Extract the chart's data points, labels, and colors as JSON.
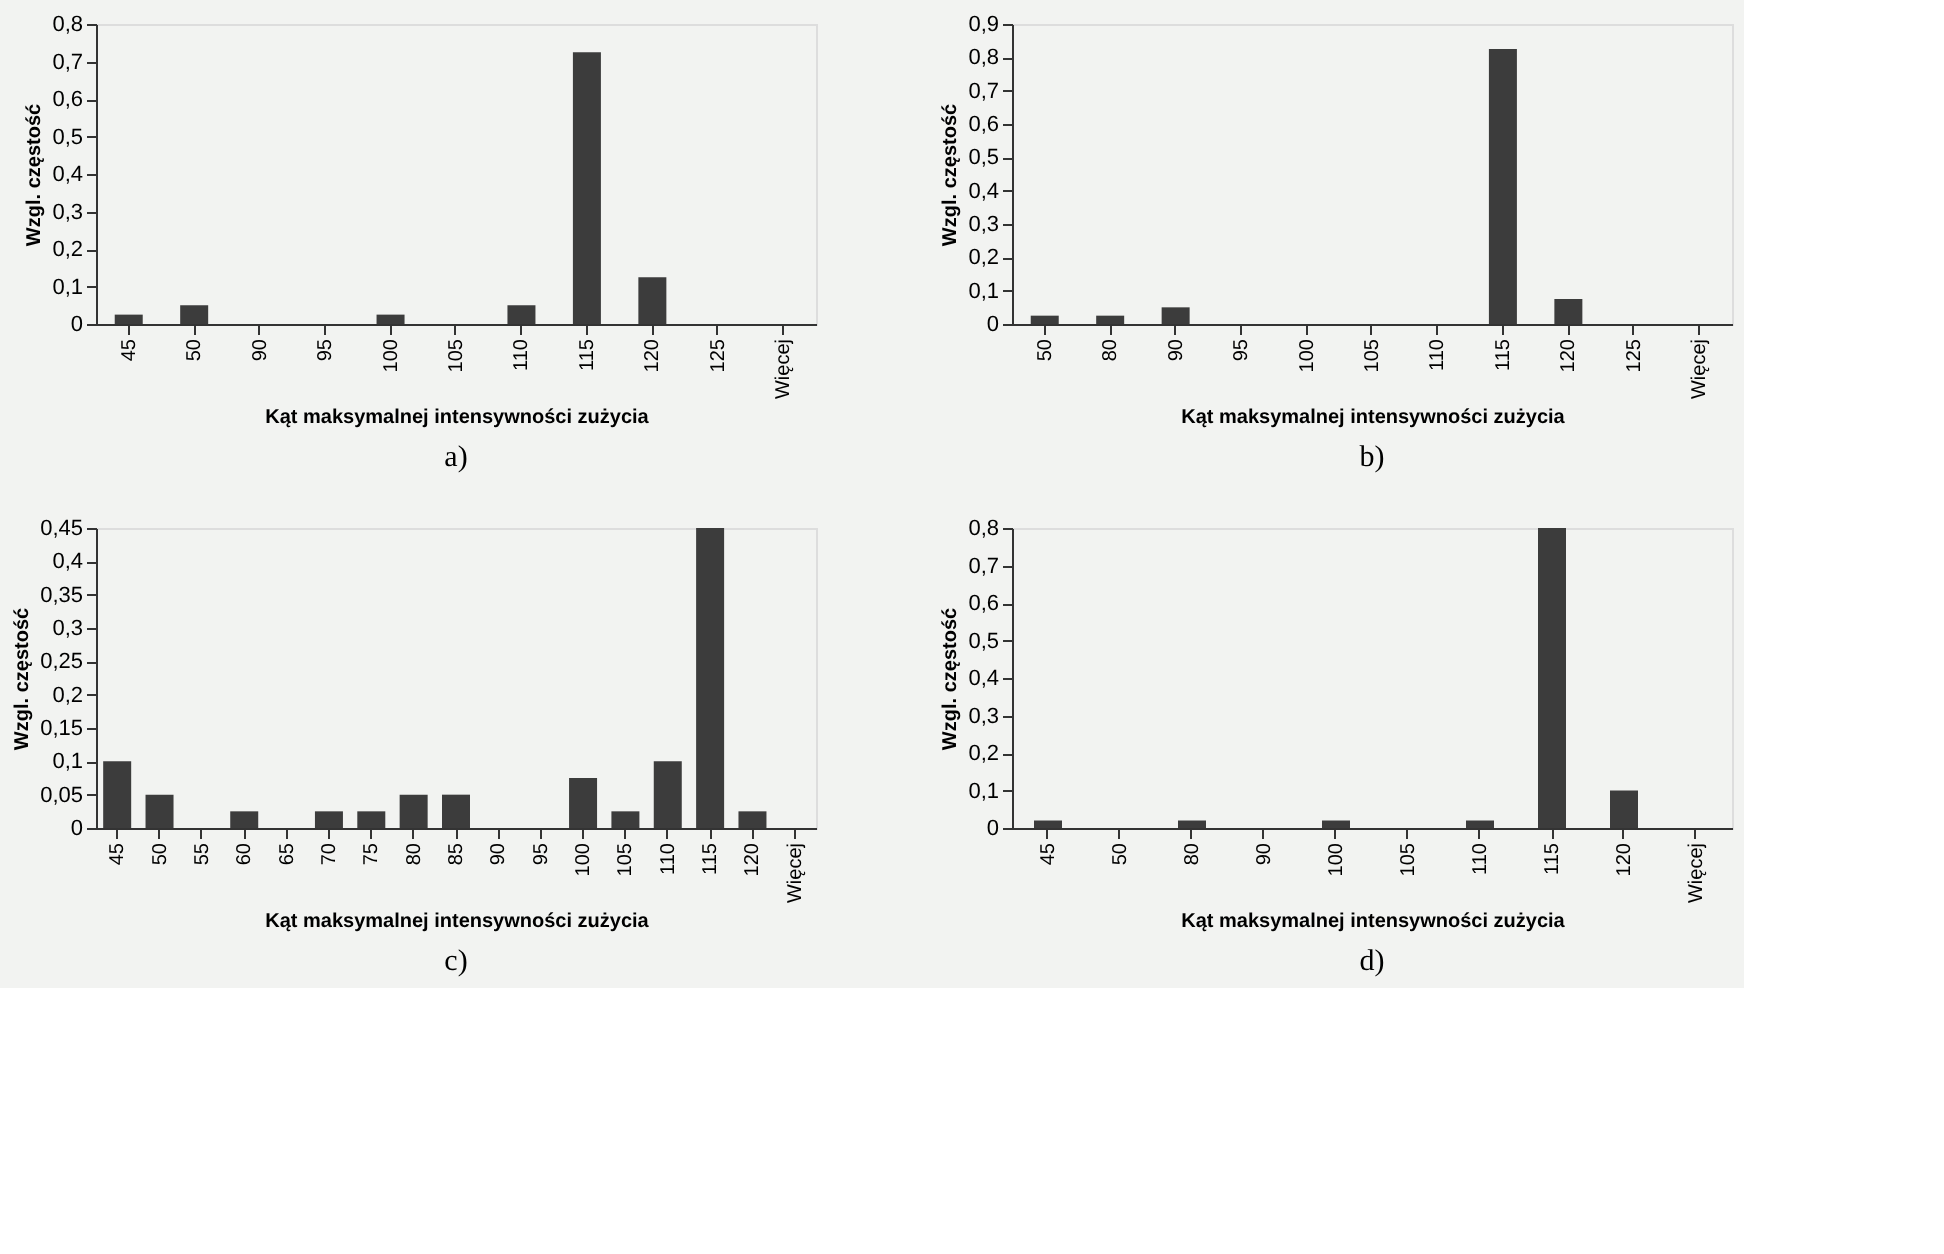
{
  "chart_data": [
    {
      "type": "bar",
      "xlabel": "Kąt maksymalnej intensywności zużycia",
      "ylabel": "Wzgl. częstość",
      "annotations": [
        "a)"
      ],
      "color": "#3c3c3c",
      "categories": [
        "45",
        "50",
        "90",
        "95",
        "100",
        "105",
        "110",
        "115",
        "120",
        "125",
        "Więcej"
      ],
      "values": [
        0.025,
        0.05,
        0,
        0,
        0.025,
        0,
        0.05,
        0.725,
        0.125,
        0,
        0
      ],
      "ylim": [
        0,
        0.8
      ],
      "yticks": [
        0,
        {
          "value": 0.1,
          "label": "0,1"
        },
        {
          "value": 0.2,
          "label": "0,2"
        },
        {
          "value": 0.3,
          "label": "0,3"
        },
        {
          "value": 0.4,
          "label": "0,4"
        },
        {
          "value": 0.5,
          "label": "0,5"
        },
        {
          "value": 0.6,
          "label": "0,6"
        },
        {
          "value": 0.7,
          "label": "0,7"
        },
        {
          "value": 0.8,
          "label": "0,8"
        }
      ]
    },
    {
      "type": "bar",
      "xlabel": "Kąt maksymalnej intensywności zużycia",
      "ylabel": "Wzgl. częstość",
      "annotations": [
        "b)"
      ],
      "color": "#3c3c3c",
      "categories": [
        "50",
        "80",
        "90",
        "95",
        "100",
        "105",
        "110",
        "115",
        "120",
        "125",
        "Więcej"
      ],
      "values": [
        0.025,
        0.025,
        0.05,
        0,
        0,
        0,
        0,
        0.825,
        0.075,
        0,
        0
      ],
      "ylim": [
        0,
        0.9
      ],
      "yticks": [
        0,
        {
          "value": 0.1,
          "label": "0,1"
        },
        {
          "value": 0.2,
          "label": "0,2"
        },
        {
          "value": 0.3,
          "label": "0,3"
        },
        {
          "value": 0.4,
          "label": "0,4"
        },
        {
          "value": 0.5,
          "label": "0,5"
        },
        {
          "value": 0.6,
          "label": "0,6"
        },
        {
          "value": 0.7,
          "label": "0,7"
        },
        {
          "value": 0.8,
          "label": "0,8"
        },
        {
          "value": 0.9,
          "label": "0,9"
        }
      ]
    },
    {
      "type": "bar",
      "xlabel": "Kąt maksymalnej intensywności zużycia",
      "ylabel": "Wzgl. częstość",
      "annotations": [
        "c)"
      ],
      "color": "#3c3c3c",
      "categories": [
        "45",
        "50",
        "55",
        "60",
        "65",
        "70",
        "75",
        "80",
        "85",
        "90",
        "95",
        "100",
        "105",
        "110",
        "115",
        "120",
        "Więcej"
      ],
      "values": [
        0.1,
        0.05,
        0,
        0.025,
        0,
        0.025,
        0.025,
        0.05,
        0.05,
        0,
        0,
        0.075,
        0.025,
        0.1,
        0.45,
        0.025,
        0
      ],
      "ylim": [
        0,
        0.45
      ],
      "yticks": [
        0,
        {
          "value": 0.05,
          "label": "0,05"
        },
        {
          "value": 0.1,
          "label": "0,1"
        },
        {
          "value": 0.15,
          "label": "0,15"
        },
        {
          "value": 0.2,
          "label": "0,2"
        },
        {
          "value": 0.25,
          "label": "0,25"
        },
        {
          "value": 0.3,
          "label": "0,3"
        },
        {
          "value": 0.35,
          "label": "0,35"
        },
        {
          "value": 0.4,
          "label": "0,4"
        },
        {
          "value": 0.45,
          "label": "0,45"
        }
      ]
    },
    {
      "type": "bar",
      "xlabel": "Kąt maksymalnej intensywności zużycia",
      "ylabel": "Wzgl. częstość",
      "annotations": [
        "d)"
      ],
      "color": "#3c3c3c",
      "categories": [
        "45",
        "50",
        "80",
        "90",
        "100",
        "105",
        "110",
        "115",
        "120",
        "Więcej"
      ],
      "values": [
        0.02,
        0,
        0.02,
        0,
        0.02,
        0,
        0.02,
        0.8,
        0.1,
        0
      ],
      "ylim": [
        0,
        0.8
      ],
      "yticks": [
        0,
        {
          "value": 0.1,
          "label": "0,1"
        },
        {
          "value": 0.2,
          "label": "0,2"
        },
        {
          "value": 0.3,
          "label": "0,3"
        },
        {
          "value": 0.4,
          "label": "0,4"
        },
        {
          "value": 0.5,
          "label": "0,5"
        },
        {
          "value": 0.6,
          "label": "0,6"
        },
        {
          "value": 0.7,
          "label": "0,7"
        },
        {
          "value": 0.8,
          "label": "0,8"
        }
      ]
    }
  ]
}
